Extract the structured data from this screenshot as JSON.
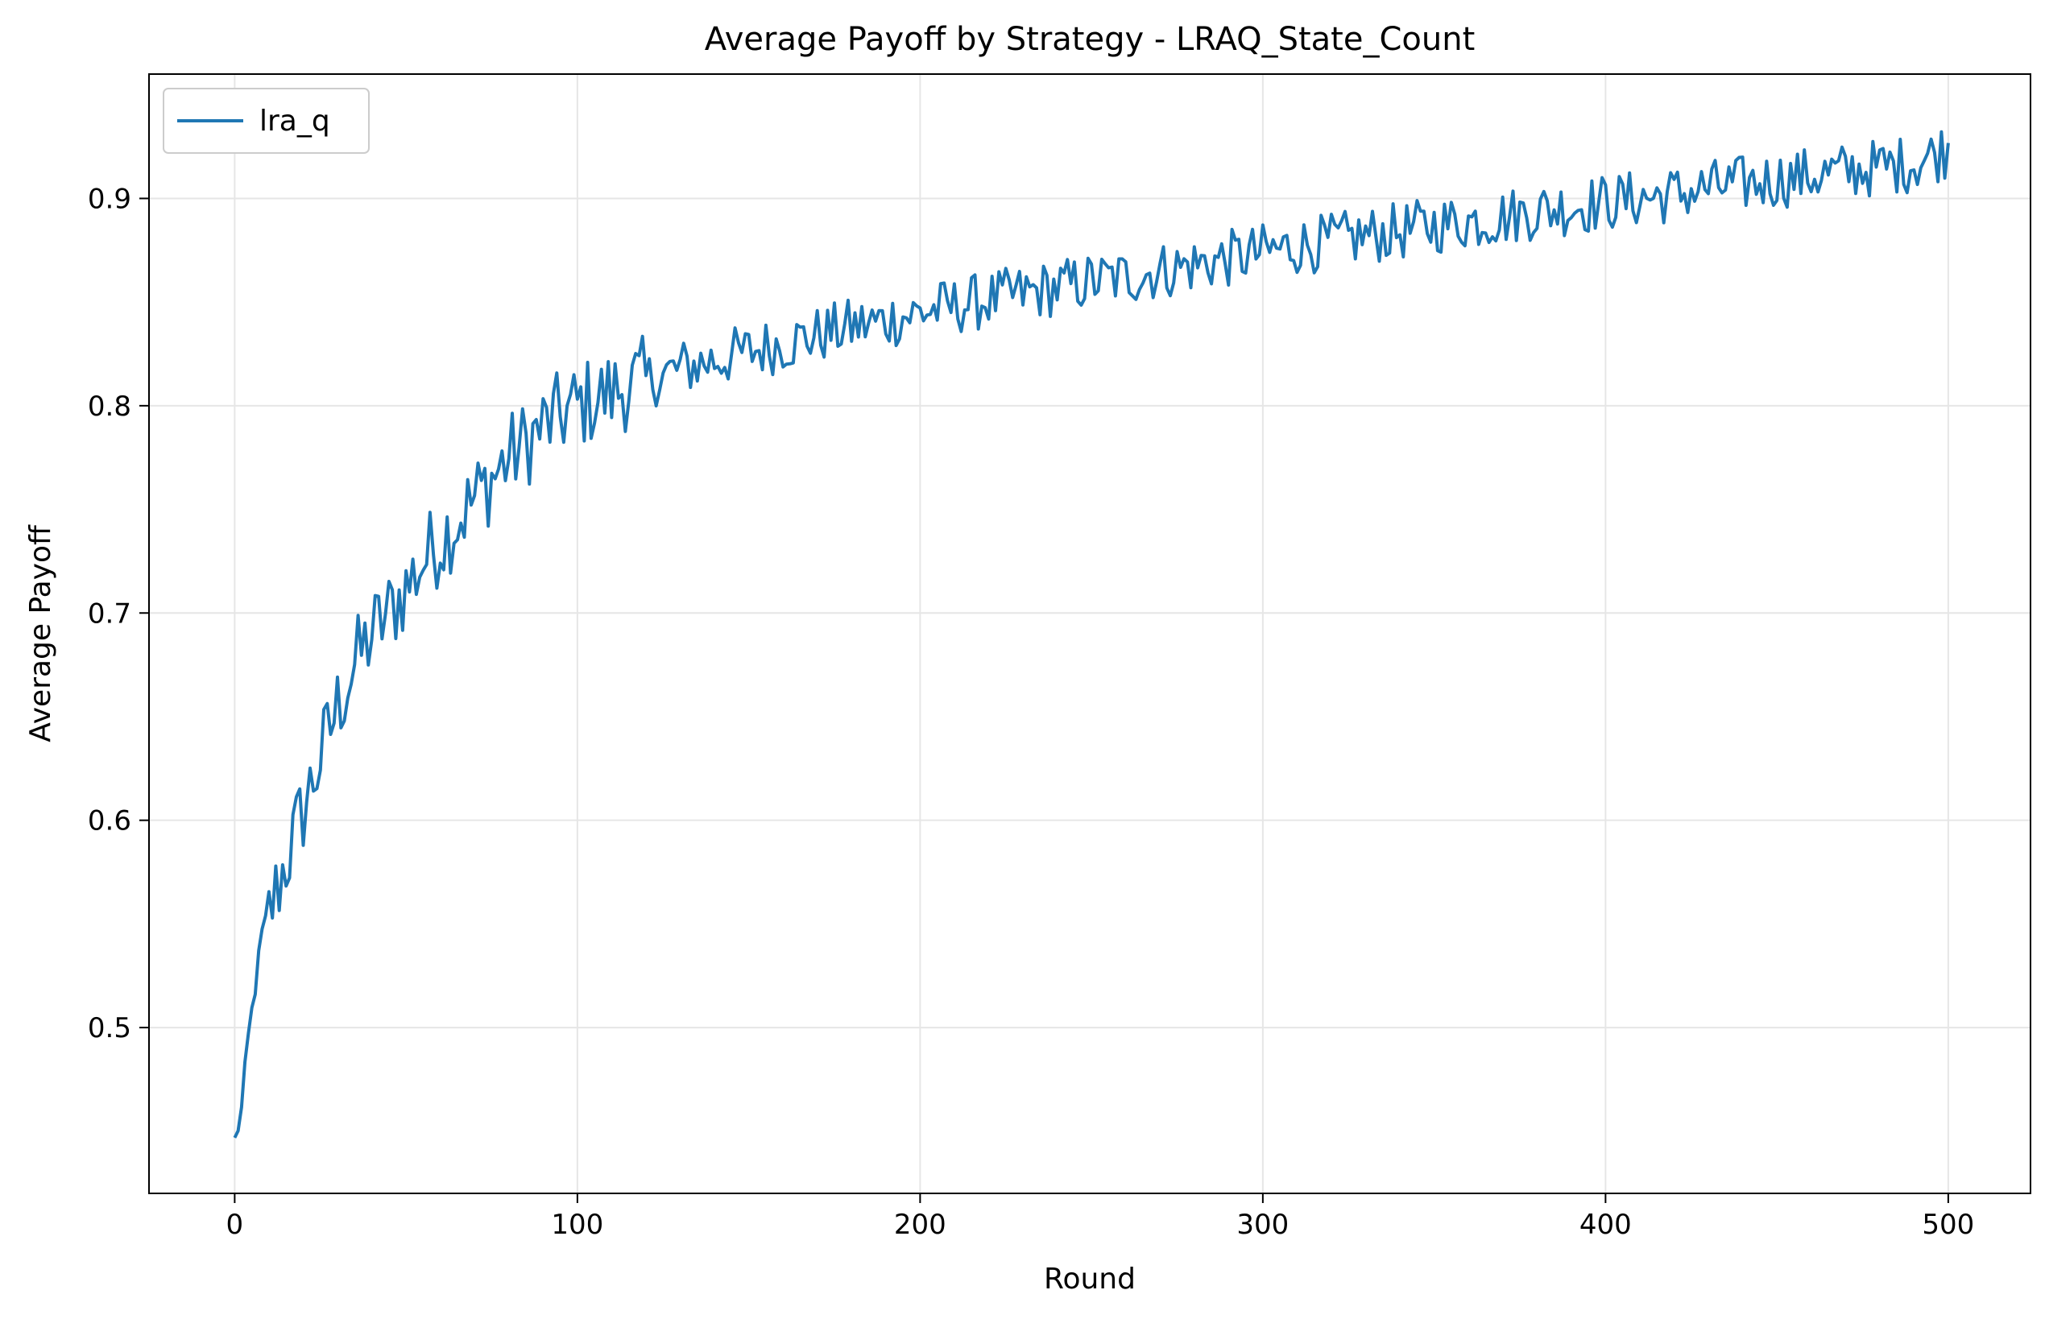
{
  "chart_data": {
    "type": "line",
    "title": "Average Payoff by Strategy - LRAQ_State_Count",
    "xlabel": "Round",
    "ylabel": "Average Payoff",
    "xlim": [
      -25,
      524
    ],
    "ylim": [
      0.42,
      0.96
    ],
    "xticks": [
      0,
      100,
      200,
      300,
      400,
      500
    ],
    "yticks": [
      0.5,
      0.6,
      0.7,
      0.8,
      0.9
    ],
    "xtick_labels": [
      "0",
      "100",
      "200",
      "300",
      "400",
      "500"
    ],
    "ytick_labels": [
      "0.5",
      "0.6",
      "0.7",
      "0.8",
      "0.9"
    ],
    "grid": true,
    "legend_position": "upper-left",
    "colors": {
      "series": "#1f77b4",
      "grid": "#e6e6e6",
      "axes": "#000000"
    },
    "series": [
      {
        "name": "lra_q",
        "noise": "High-frequency noise of roughly +/-0.02 around the trend",
        "x": [
          0,
          2,
          4,
          6,
          8,
          10,
          12,
          14,
          16,
          18,
          20,
          25,
          30,
          35,
          40,
          45,
          50,
          55,
          60,
          65,
          70,
          75,
          80,
          85,
          90,
          95,
          100,
          105,
          110,
          115,
          120,
          130,
          140,
          150,
          160,
          170,
          180,
          190,
          200,
          210,
          220,
          230,
          240,
          250,
          260,
          270,
          280,
          290,
          300,
          310,
          320,
          330,
          340,
          350,
          360,
          370,
          380,
          390,
          400,
          410,
          420,
          430,
          440,
          450,
          460,
          470,
          480,
          490,
          500
        ],
        "y": [
          0.445,
          0.46,
          0.495,
          0.52,
          0.545,
          0.555,
          0.565,
          0.575,
          0.585,
          0.595,
          0.605,
          0.63,
          0.655,
          0.675,
          0.69,
          0.7,
          0.712,
          0.725,
          0.735,
          0.745,
          0.755,
          0.765,
          0.775,
          0.782,
          0.79,
          0.795,
          0.8,
          0.803,
          0.806,
          0.81,
          0.812,
          0.818,
          0.822,
          0.826,
          0.83,
          0.834,
          0.838,
          0.841,
          0.845,
          0.848,
          0.851,
          0.854,
          0.857,
          0.86,
          0.862,
          0.865,
          0.868,
          0.871,
          0.874,
          0.877,
          0.879,
          0.882,
          0.884,
          0.887,
          0.889,
          0.891,
          0.894,
          0.896,
          0.898,
          0.9,
          0.902,
          0.905,
          0.907,
          0.909,
          0.911,
          0.913,
          0.915,
          0.917,
          0.924
        ]
      }
    ]
  }
}
